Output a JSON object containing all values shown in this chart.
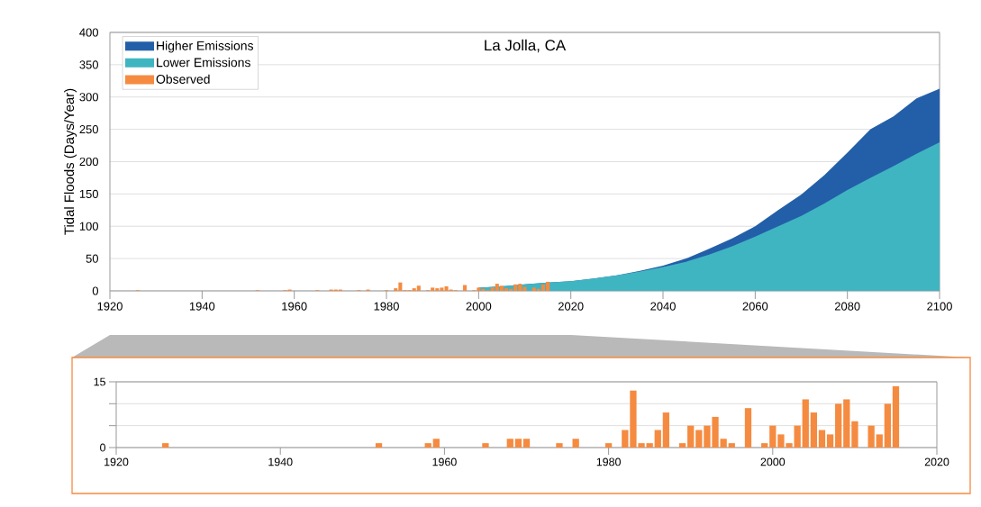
{
  "chart_data": [
    {
      "type": "area",
      "title": "La Jolla, CA",
      "ylabel": "Tidal Floods (Days/Year)",
      "xlim": [
        1920,
        2100
      ],
      "ylim": [
        0,
        400
      ],
      "xticks": [
        1920,
        1940,
        1960,
        1980,
        2000,
        2020,
        2040,
        2060,
        2080,
        2100
      ],
      "yticks": [
        0,
        50,
        100,
        150,
        200,
        250,
        300,
        350,
        400
      ],
      "grid": "y",
      "legend": "top left",
      "series": [
        {
          "name": "Higher Emissions",
          "color": "#235fa8",
          "type": "area",
          "x": [
            2000,
            2005,
            2010,
            2015,
            2020,
            2025,
            2030,
            2035,
            2040,
            2045,
            2050,
            2055,
            2060,
            2065,
            2070,
            2075,
            2080,
            2085,
            2090,
            2095,
            2100
          ],
          "values": [
            5,
            7,
            10,
            13,
            15,
            19,
            24,
            31,
            39,
            50,
            65,
            81,
            100,
            125,
            149,
            179,
            214,
            250,
            270,
            298,
            313
          ]
        },
        {
          "name": "Lower Emissions",
          "color": "#40b5c2",
          "type": "area",
          "x": [
            2000,
            2005,
            2010,
            2015,
            2020,
            2025,
            2030,
            2035,
            2040,
            2045,
            2050,
            2055,
            2060,
            2065,
            2070,
            2075,
            2080,
            2085,
            2090,
            2095,
            2100
          ],
          "values": [
            5,
            7,
            10,
            13,
            15,
            19,
            24,
            30,
            37,
            45,
            56,
            69,
            84,
            100,
            116,
            135,
            156,
            175,
            193,
            212,
            230
          ]
        },
        {
          "name": "Observed",
          "color": "#f58b40",
          "type": "bar",
          "x": [
            1926,
            1952,
            1958,
            1959,
            1965,
            1968,
            1969,
            1970,
            1974,
            1976,
            1980,
            1982,
            1983,
            1984,
            1985,
            1986,
            1987,
            1989,
            1990,
            1991,
            1992,
            1993,
            1994,
            1995,
            1997,
            1999,
            2000,
            2001,
            2002,
            2003,
            2004,
            2005,
            2006,
            2007,
            2008,
            2009,
            2010,
            2012,
            2013,
            2014,
            2015
          ],
          "values": [
            1,
            1,
            1,
            2,
            1,
            2,
            2,
            2,
            1,
            2,
            1,
            4,
            13,
            1,
            1,
            4,
            8,
            1,
            5,
            4,
            5,
            7,
            2,
            1,
            9,
            1,
            5,
            3,
            1,
            5,
            11,
            8,
            4,
            3,
            10,
            11,
            6,
            5,
            3,
            10,
            14
          ]
        }
      ]
    },
    {
      "type": "bar",
      "xlim": [
        1920,
        2020
      ],
      "ylim": [
        0,
        15
      ],
      "xticks": [
        1920,
        1940,
        1960,
        1980,
        2000,
        2020
      ],
      "yticks": [
        0,
        {
          "value": 5,
          "label": null
        },
        {
          "value": 10,
          "label": null
        },
        15
      ],
      "grid": "y",
      "series": [
        {
          "color": "#f58b40",
          "x": [
            1926,
            1952,
            1958,
            1959,
            1965,
            1968,
            1969,
            1970,
            1974,
            1976,
            1980,
            1982,
            1983,
            1984,
            1985,
            1986,
            1987,
            1989,
            1990,
            1991,
            1992,
            1993,
            1994,
            1995,
            1997,
            1999,
            2000,
            2001,
            2002,
            2003,
            2004,
            2005,
            2006,
            2007,
            2008,
            2009,
            2010,
            2012,
            2013,
            2014,
            2015
          ],
          "values": [
            1,
            1,
            1,
            2,
            1,
            2,
            2,
            2,
            1,
            2,
            1,
            4,
            13,
            1,
            1,
            4,
            8,
            1,
            5,
            4,
            5,
            7,
            2,
            1,
            9,
            1,
            5,
            3,
            1,
            5,
            11,
            8,
            4,
            3,
            10,
            11,
            6,
            5,
            3,
            10,
            14
          ]
        }
      ]
    }
  ]
}
